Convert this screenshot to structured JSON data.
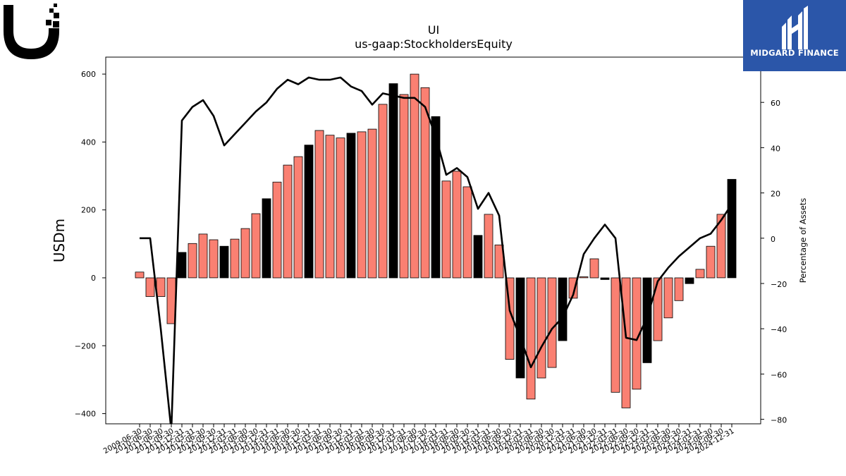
{
  "header": {
    "company_logo_text": "UI",
    "brand_name": "MIDGARD FINANCE"
  },
  "colors": {
    "bar_default": "#fa8072",
    "bar_highlight": "#000000",
    "line": "#000000",
    "brand_bg": "#2b56a9"
  },
  "chart_data": {
    "type": "bar",
    "title": "UI",
    "subtitle": "us-gaap:StockholdersEquity",
    "ylabel": "USDm",
    "y2label": "Percentage of Assets",
    "ylim": [
      -430,
      650
    ],
    "y2lim": [
      -82,
      80
    ],
    "yticks": [
      -400,
      -200,
      0,
      200,
      400,
      600
    ],
    "y2ticks": [
      -80,
      -60,
      -40,
      -20,
      0,
      20,
      40,
      60
    ],
    "grid": false,
    "legend": "none",
    "categories": [
      "2009-06-30",
      "2010-06-30",
      "2011-06-30",
      "2011-09-30",
      "2011-12-31",
      "2012-03-31",
      "2012-06-30",
      "2012-09-30",
      "2012-12-31",
      "2013-03-31",
      "2013-06-30",
      "2013-09-30",
      "2013-12-31",
      "2014-03-31",
      "2014-06-30",
      "2014-09-30",
      "2014-12-31",
      "2015-03-31",
      "2015-06-30",
      "2015-09-30",
      "2015-12-31",
      "2016-03-31",
      "2016-06-30",
      "2016-09-30",
      "2016-12-31",
      "2017-03-31",
      "2017-06-30",
      "2017-09-30",
      "2017-12-31",
      "2018-03-31",
      "2018-06-30",
      "2018-09-30",
      "2018-12-31",
      "2019-03-31",
      "2019-06-30",
      "2019-09-30",
      "2019-12-31",
      "2020-03-31",
      "2020-06-30",
      "2020-09-30",
      "2020-12-31",
      "2021-03-31",
      "2021-06-30",
      "2021-09-30",
      "2021-12-31",
      "2022-03-31",
      "2022-06-30",
      "2022-09-30",
      "2022-12-31",
      "2023-03-31",
      "2023-06-30",
      "2023-09-30",
      "2023-12-31",
      "2024-03-31",
      "2024-06-30",
      "2024-09-30",
      "2024-12-31"
    ],
    "xtick_labels": [
      "2009-06-30",
      "2010-06-30",
      "2011-06-30",
      "2011-09-30",
      "2011-12-31",
      "2012-03-31",
      "2012-06-30",
      "2012-09-30",
      "2012-12-31",
      "2013-03-31",
      "2013-06-30",
      "2013-09-30",
      "2013-12-31",
      "2014-03-31",
      "2014-06-30",
      "2014-09-30",
      "2014-12-31",
      "2015-03-31",
      "2015-06-30",
      "2015-09-30",
      "2015-12-31",
      "2016-03-31",
      "2016-06-30",
      "2016-09-30",
      "2016-12-31",
      "2017-03-31",
      "2017-06-30",
      "2017-09-30",
      "2017-12-31",
      "2018-03-31",
      "2018-06-30",
      "2018-09-30",
      "2018-12-31",
      "2019-03-31",
      "2019-06-30",
      "2019-09-30",
      "2019-12-31",
      "2020-03-31",
      "2020-06-30",
      "2020-09-30",
      "2020-12-31",
      "2021-03-31",
      "2021-06-30",
      "2021-09-30",
      "2021-12-31",
      "2022-03-31",
      "2022-06-30",
      "2022-09-30",
      "2022-12-31",
      "2023-03-31",
      "2023-06-30",
      "2023-09-30",
      "2023-12-31",
      "2024-03-31",
      "2024-06-30",
      "2024-09-30",
      "2024-12-31"
    ],
    "series": [
      {
        "kind": "bar",
        "axis": "left",
        "values": [
          17,
          -55,
          -55,
          -135,
          75,
          101,
          129,
          112,
          93,
          114,
          145,
          189,
          233,
          282,
          332,
          357,
          391,
          434,
          420,
          412,
          426,
          430,
          438,
          511,
          572,
          540,
          600,
          560,
          475,
          285,
          314,
          268,
          125,
          187,
          97,
          -240,
          -295,
          -357,
          -295,
          -264,
          -185,
          -60,
          3,
          56,
          -5,
          -337,
          -383,
          -328,
          -250,
          -185,
          -118,
          -67,
          -17,
          25,
          93,
          187,
          290
        ],
        "highlight": [
          false,
          false,
          false,
          false,
          true,
          false,
          false,
          false,
          true,
          false,
          false,
          false,
          true,
          false,
          false,
          false,
          true,
          false,
          false,
          false,
          true,
          false,
          false,
          false,
          true,
          false,
          false,
          false,
          true,
          false,
          false,
          false,
          true,
          false,
          false,
          false,
          true,
          false,
          false,
          false,
          true,
          false,
          false,
          false,
          true,
          false,
          false,
          false,
          true,
          false,
          false,
          false,
          true,
          false,
          false,
          false,
          true
        ]
      },
      {
        "kind": "line",
        "axis": "right",
        "values": [
          0,
          0,
          -40,
          -85,
          52,
          58,
          61,
          54,
          41,
          46,
          51,
          56,
          60,
          66,
          70,
          68,
          71,
          70,
          70,
          71,
          67,
          65,
          59,
          64,
          63,
          62,
          62,
          58,
          45,
          28,
          31,
          27,
          13,
          20,
          10,
          -32,
          -44,
          -57,
          -48,
          -40,
          -35,
          -25,
          -7,
          0,
          6,
          0,
          -44,
          -45,
          -35,
          -19,
          -13,
          -8,
          -4,
          0,
          2,
          8,
          15
        ]
      }
    ]
  }
}
